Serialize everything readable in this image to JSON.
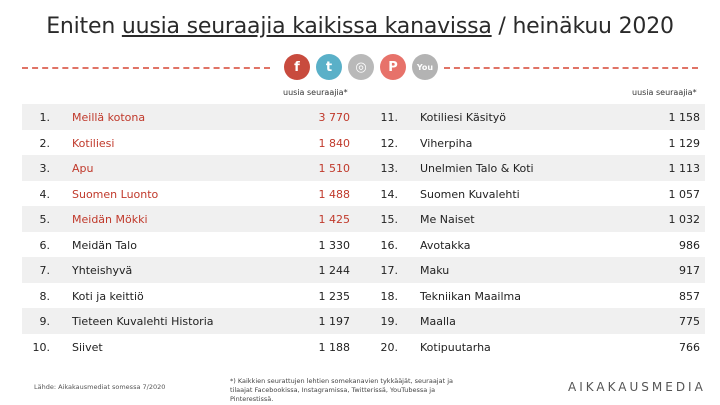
{
  "title": {
    "prefix": "Eniten ",
    "underlined": "uusia seuraajia kaikissa kanavissa",
    "suffix": " / heinäkuu 2020"
  },
  "social_icons": [
    {
      "name": "facebook-icon",
      "glyph": "f"
    },
    {
      "name": "twitter-icon",
      "glyph": "t"
    },
    {
      "name": "instagram-icon",
      "glyph": "◎"
    },
    {
      "name": "pinterest-icon",
      "glyph": "P"
    },
    {
      "name": "youtube-icon",
      "glyph": "You"
    }
  ],
  "column_header": "uusia seuraajia*",
  "left_rows": [
    {
      "rank": "1.",
      "name": "Meillä kotona",
      "value": "3 770",
      "highlight": true
    },
    {
      "rank": "2.",
      "name": "Kotiliesi",
      "value": "1 840",
      "highlight": true
    },
    {
      "rank": "3.",
      "name": "Apu",
      "value": "1 510",
      "highlight": true
    },
    {
      "rank": "4.",
      "name": "Suomen Luonto",
      "value": "1 488",
      "highlight": true
    },
    {
      "rank": "5.",
      "name": "Meidän Mökki",
      "value": "1 425",
      "highlight": true
    },
    {
      "rank": "6.",
      "name": "Meidän Talo",
      "value": "1 330",
      "highlight": false
    },
    {
      "rank": "7.",
      "name": "Yhteishyvä",
      "value": "1 244",
      "highlight": false
    },
    {
      "rank": "8.",
      "name": "Koti ja keittiö",
      "value": "1 235",
      "highlight": false
    },
    {
      "rank": "9.",
      "name": "Tieteen Kuvalehti Historia",
      "value": "1 197",
      "highlight": false
    },
    {
      "rank": "10.",
      "name": "Siivet",
      "value": "1 188",
      "highlight": false
    }
  ],
  "right_rows": [
    {
      "rank": "11.",
      "name": "Kotiliesi Käsityö",
      "value": "1 158"
    },
    {
      "rank": "12.",
      "name": "Viherpiha",
      "value": "1 129"
    },
    {
      "rank": "13.",
      "name": "Unelmien Talo & Koti",
      "value": "1 113"
    },
    {
      "rank": "14.",
      "name": "Suomen Kuvalehti",
      "value": "1 057"
    },
    {
      "rank": "15.",
      "name": "Me Naiset",
      "value": "1 032"
    },
    {
      "rank": "16.",
      "name": "Avotakka",
      "value": "986"
    },
    {
      "rank": "17.",
      "name": "Maku",
      "value": "917"
    },
    {
      "rank": "18.",
      "name": "Tekniikan Maailma",
      "value": "857"
    },
    {
      "rank": "19.",
      "name": "Maalla",
      "value": "775"
    },
    {
      "rank": "20.",
      "name": "Kotipuutarha",
      "value": "766"
    }
  ],
  "source": "Lähde: Aikakausmediat somessa 7/2020",
  "footnote": "*) Kaikkien seurattujen lehtien somekanavien tykkääjät, seuraajat ja tilaajat Facebookissa, Instagramissa, Twitterissä, YouTubessa ja Pinterestissä.",
  "brand": "AIKAKAUSMEDIA",
  "colors": {
    "accent": "#c0392b",
    "dash": "#e07366",
    "row_shade": "#f0f0f0"
  }
}
